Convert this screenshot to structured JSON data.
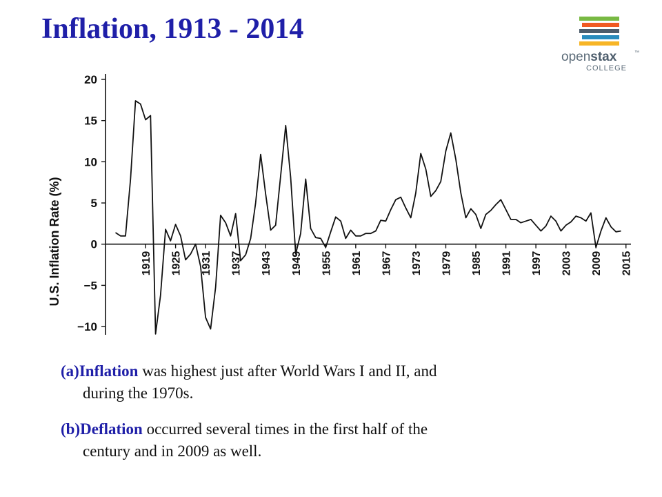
{
  "title": "Inflation, 1913 - 2014",
  "logo": {
    "word_a": "open",
    "word_b": "stax",
    "tm": "™",
    "sub": "COLLEGE",
    "bar_colors": [
      "#78b943",
      "#f15a22",
      "#4d5d6c",
      "#2a8cbd",
      "#f7b526"
    ]
  },
  "captions": [
    {
      "marker": "(a)",
      "term": "Inflation",
      "rest": " was highest just after World Wars I and II, and",
      "cont": "during the 1970s."
    },
    {
      "marker": "(b)",
      "term": "Deflation",
      "rest": " occurred several times in the first half of the",
      "cont": "century and in 2009 as well."
    }
  ],
  "chart_data": {
    "type": "line",
    "title": "",
    "xlabel": "",
    "ylabel": "U.S. Inflation Rate (%)",
    "ylim": [
      -11,
      20
    ],
    "xlim": [
      1911,
      2016
    ],
    "yticks": [
      20,
      15,
      10,
      5,
      0,
      -5,
      -10
    ],
    "ytick_labels": [
      "20",
      "15",
      "10",
      "5",
      "0",
      "−5",
      "−10"
    ],
    "xticks": [
      1919,
      1925,
      1931,
      1937,
      1943,
      1949,
      1955,
      1961,
      1967,
      1973,
      1979,
      1985,
      1991,
      1997,
      2003,
      2009,
      2015
    ],
    "line_color": "#111111",
    "series": [
      {
        "x": [
          1913,
          1914,
          1915,
          1916,
          1917,
          1918,
          1919,
          1920,
          1921,
          1922,
          1923,
          1924,
          1925,
          1926,
          1927,
          1928,
          1929,
          1930,
          1931,
          1932,
          1933,
          1934,
          1935,
          1936,
          1937,
          1938,
          1939,
          1940,
          1941,
          1942,
          1943,
          1944,
          1945,
          1946,
          1947,
          1948,
          1949,
          1950,
          1951,
          1952,
          1953,
          1954,
          1955,
          1956,
          1957,
          1958,
          1959,
          1960,
          1961,
          1962,
          1963,
          1964,
          1965,
          1966,
          1967,
          1968,
          1969,
          1970,
          1971,
          1972,
          1973,
          1974,
          1975,
          1976,
          1977,
          1978,
          1979,
          1980,
          1981,
          1982,
          1983,
          1984,
          1985,
          1986,
          1987,
          1988,
          1989,
          1990,
          1991,
          1992,
          1993,
          1994,
          1995,
          1996,
          1997,
          1998,
          1999,
          2000,
          2001,
          2002,
          2003,
          2004,
          2005,
          2006,
          2007,
          2008,
          2009,
          2010,
          2011,
          2012,
          2013,
          2014
        ],
        "y": [
          1.4,
          1.0,
          1.0,
          7.9,
          17.4,
          17.0,
          15.1,
          15.6,
          -10.9,
          -6.2,
          1.8,
          0.4,
          2.4,
          1.0,
          -1.9,
          -1.2,
          0.0,
          -2.7,
          -8.9,
          -10.3,
          -5.2,
          3.5,
          2.6,
          1.0,
          3.7,
          -2.0,
          -1.3,
          0.7,
          5.0,
          10.9,
          6.1,
          1.7,
          2.3,
          8.3,
          14.4,
          8.1,
          -1.2,
          1.3,
          7.9,
          1.9,
          0.8,
          0.7,
          -0.4,
          1.5,
          3.3,
          2.8,
          0.7,
          1.7,
          1.0,
          1.0,
          1.3,
          1.3,
          1.6,
          2.9,
          2.8,
          4.2,
          5.4,
          5.7,
          4.4,
          3.2,
          6.2,
          11.0,
          9.1,
          5.8,
          6.5,
          7.6,
          11.3,
          13.5,
          10.3,
          6.2,
          3.2,
          4.3,
          3.6,
          1.9,
          3.6,
          4.1,
          4.8,
          5.4,
          4.2,
          3.0,
          3.0,
          2.6,
          2.8,
          3.0,
          2.3,
          1.6,
          2.2,
          3.4,
          2.8,
          1.6,
          2.3,
          2.7,
          3.4,
          3.2,
          2.8,
          3.8,
          -0.4,
          1.6,
          3.2,
          2.1,
          1.5,
          1.6
        ]
      }
    ]
  }
}
